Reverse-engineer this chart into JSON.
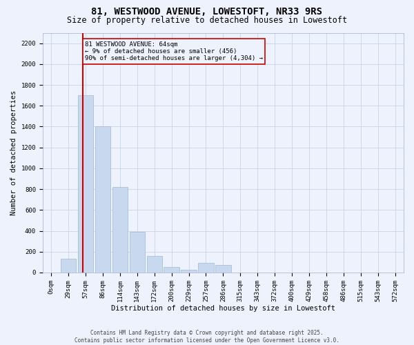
{
  "title": "81, WESTWOOD AVENUE, LOWESTOFT, NR33 9RS",
  "subtitle": "Size of property relative to detached houses in Lowestoft",
  "xlabel": "Distribution of detached houses by size in Lowestoft",
  "ylabel": "Number of detached properties",
  "categories": [
    "0sqm",
    "29sqm",
    "57sqm",
    "86sqm",
    "114sqm",
    "143sqm",
    "172sqm",
    "200sqm",
    "229sqm",
    "257sqm",
    "286sqm",
    "315sqm",
    "343sqm",
    "372sqm",
    "400sqm",
    "429sqm",
    "458sqm",
    "486sqm",
    "515sqm",
    "543sqm",
    "572sqm"
  ],
  "values": [
    0,
    130,
    1700,
    1400,
    820,
    390,
    160,
    50,
    25,
    95,
    70,
    0,
    0,
    0,
    0,
    0,
    0,
    0,
    0,
    0,
    0
  ],
  "bar_color": "#c8d8ee",
  "bar_edgecolor": "#a0b8d0",
  "vline_x": 1.85,
  "annotation_text": "81 WESTWOOD AVENUE: 64sqm\n← 9% of detached houses are smaller (456)\n90% of semi-detached houses are larger (4,304) →",
  "vline_color": "#cc0000",
  "annotation_box_edgecolor": "#cc0000",
  "ylim": [
    0,
    2300
  ],
  "yticks": [
    0,
    200,
    400,
    600,
    800,
    1000,
    1200,
    1400,
    1600,
    1800,
    2000,
    2200
  ],
  "footer_line1": "Contains HM Land Registry data © Crown copyright and database right 2025.",
  "footer_line2": "Contains public sector information licensed under the Open Government Licence v3.0.",
  "grid_color": "#c8d4e8",
  "bg_color": "#eef2fc",
  "title_fontsize": 10,
  "subtitle_fontsize": 8.5,
  "tick_fontsize": 6.5,
  "label_fontsize": 7.5,
  "footer_fontsize": 5.5
}
